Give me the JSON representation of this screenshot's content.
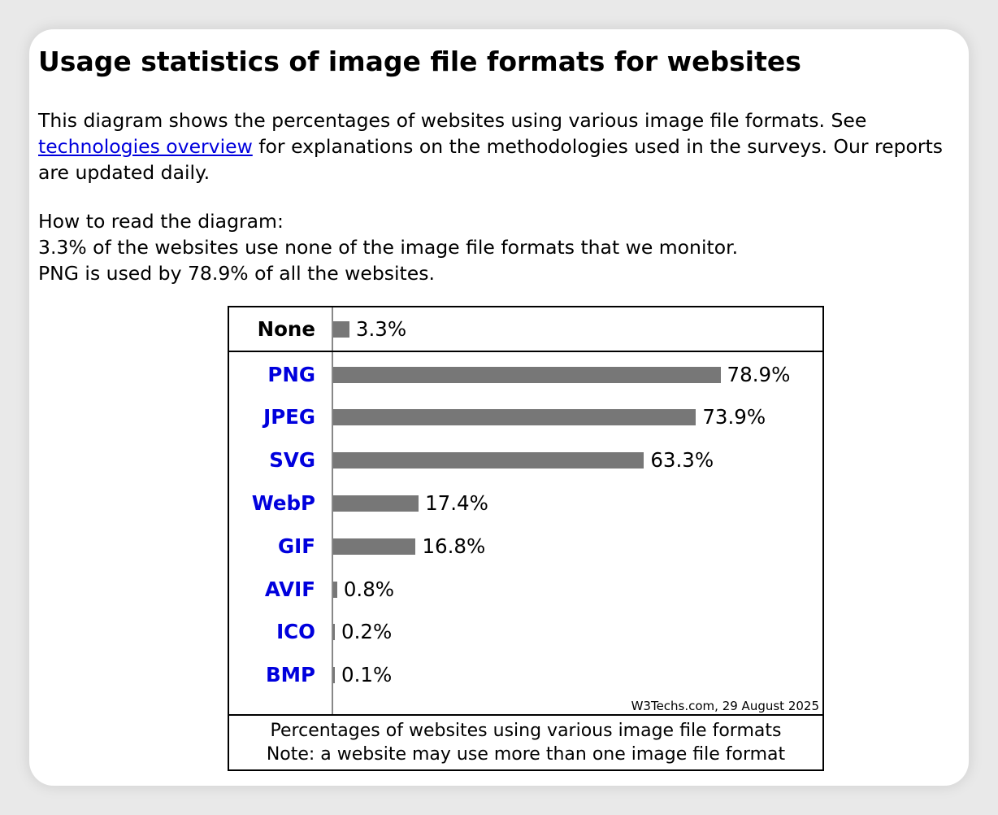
{
  "page": {
    "title": "Usage statistics of image file formats for websites",
    "intro_before_link": "This diagram shows the percentages of websites using various image file formats. See ",
    "intro_link": "technologies overview",
    "intro_after_link": " for explanations on the methodologies used in the surveys. Our reports are updated daily.",
    "howto_heading": "How to read the diagram:",
    "howto_line1": "3.3% of the websites use none of the image file formats that we monitor.",
    "howto_line2": "PNG is used by 78.9% of all the websites."
  },
  "chart_data": {
    "type": "bar",
    "orientation": "horizontal",
    "categories": [
      "None",
      "PNG",
      "JPEG",
      "SVG",
      "WebP",
      "GIF",
      "AVIF",
      "ICO",
      "BMP"
    ],
    "values": [
      3.3,
      78.9,
      73.9,
      63.3,
      17.4,
      16.8,
      0.8,
      0.2,
      0.1
    ],
    "value_labels": [
      "3.3%",
      "78.9%",
      "73.9%",
      "63.3%",
      "17.4%",
      "16.8%",
      "0.8%",
      "0.2%",
      "0.1%"
    ],
    "linked_categories": [
      "PNG",
      "JPEG",
      "SVG",
      "WebP",
      "GIF",
      "AVIF",
      "ICO",
      "BMP"
    ],
    "xlim": [
      0,
      100
    ],
    "unit": "%",
    "grid": false,
    "bar_color": "#777777",
    "link_color": "#0000dd",
    "credit": "W3Techs.com, 29 August 2025",
    "caption_line1": "Percentages of websites using various image file formats",
    "caption_line2": "Note: a website may use more than one image file format"
  }
}
